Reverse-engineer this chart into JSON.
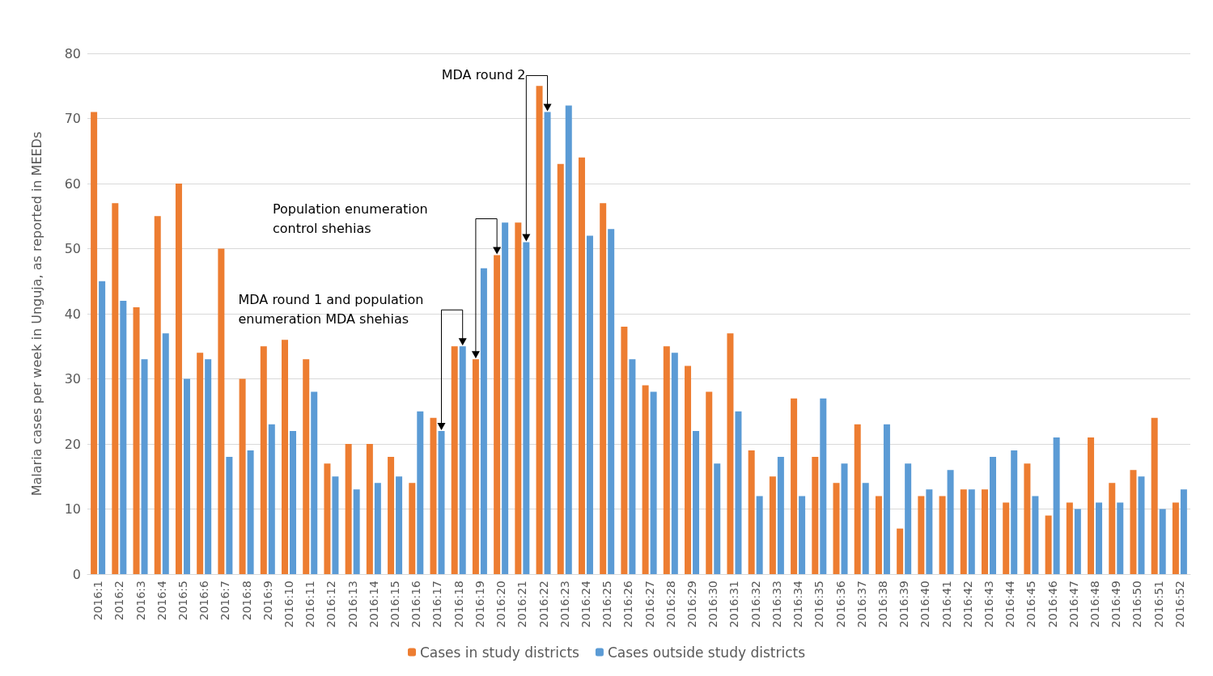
{
  "chart_data": {
    "type": "bar",
    "ylabel": "Malaria cases per week in Unguja, as reported in MEEDs",
    "categories": [
      "2016:1",
      "2016:2",
      "2016:3",
      "2016:4",
      "2016:5",
      "2016:6",
      "2016:7",
      "2016:8",
      "2016:9",
      "2016:10",
      "2016:11",
      "2016:12",
      "2016:13",
      "2016:14",
      "2016:15",
      "2016:16",
      "2016:17",
      "2016:18",
      "2016:19",
      "2016:20",
      "2016:21",
      "2016:22",
      "2016:23",
      "2016:24",
      "2016:25",
      "2016:26",
      "2016:27",
      "2016:28",
      "2016:29",
      "2016:30",
      "2016:31",
      "2016:32",
      "2016:33",
      "2016:34",
      "2016:35",
      "2016:36",
      "2016:37",
      "2016:38",
      "2016:39",
      "2016:40",
      "2016:41",
      "2016:42",
      "2016:43",
      "2016:44",
      "2016:45",
      "2016:46",
      "2016:47",
      "2016:48",
      "2016:49",
      "2016:50",
      "2016:51",
      "2016:52"
    ],
    "series": [
      {
        "name": "Cases in study districts",
        "color": "#ed7d31",
        "values": [
          71,
          57,
          41,
          55,
          60,
          34,
          50,
          30,
          35,
          36,
          33,
          17,
          20,
          20,
          18,
          14,
          24,
          35,
          33,
          49,
          54,
          75,
          63,
          64,
          57,
          38,
          29,
          35,
          32,
          28,
          37,
          19,
          15,
          27,
          18,
          14,
          23,
          12,
          7,
          12,
          12,
          13,
          13,
          11,
          17,
          9,
          11,
          21,
          14,
          16,
          24,
          11
        ]
      },
      {
        "name": "Cases outside study districts",
        "color": "#5b9bd5",
        "values": [
          45,
          42,
          33,
          37,
          30,
          33,
          18,
          19,
          23,
          22,
          28,
          15,
          13,
          14,
          15,
          25,
          22,
          35,
          47,
          54,
          51,
          71,
          72,
          52,
          53,
          33,
          28,
          34,
          22,
          17,
          25,
          12,
          18,
          12,
          27,
          17,
          14,
          23,
          17,
          13,
          16,
          13,
          18,
          19,
          12,
          21,
          10,
          11,
          11,
          15,
          10,
          13
        ]
      }
    ],
    "ylim": [
      0,
      80
    ],
    "yticks": [
      0,
      10,
      20,
      30,
      40,
      50,
      60,
      70,
      80
    ],
    "grid": "y",
    "legend": "bottom",
    "annotations": [
      "MDA round 1 and population enumeration MDA shehias",
      "Population enumeration control shehias",
      "MDA round 2"
    ]
  }
}
